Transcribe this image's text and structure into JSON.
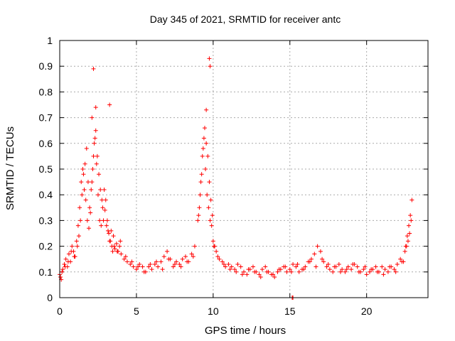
{
  "chart_data": {
    "type": "scatter",
    "title": "Day 345 of 2021, SRMTID for receiver antc",
    "xlabel": "GPS time / hours",
    "ylabel": "SRMTID / TECUs",
    "xlim": [
      0,
      24
    ],
    "ylim": [
      0,
      1
    ],
    "xticks": [
      "0",
      "5",
      "10",
      "15",
      "20"
    ],
    "yticks": [
      "0",
      "0.1",
      "0.2",
      "0.3",
      "0.4",
      "0.5",
      "0.6",
      "0.7",
      "0.8",
      "0.9",
      "1"
    ],
    "grid": true,
    "marker": "+",
    "color": "#ff0000",
    "series": [
      {
        "name": "SRMTID",
        "x": [
          0.0,
          0.1,
          0.2,
          0.3,
          0.4,
          0.5,
          0.6,
          0.7,
          0.8,
          0.9,
          1.0,
          1.1,
          1.2,
          1.3,
          1.4,
          1.5,
          1.6,
          1.7,
          1.8,
          1.9,
          2.0,
          2.1,
          2.2,
          2.3,
          2.4,
          2.5,
          2.6,
          2.7,
          2.8,
          2.9,
          3.0,
          3.1,
          3.2,
          3.3,
          3.4,
          3.5,
          3.6,
          3.7,
          3.8,
          3.9,
          4.0,
          4.2,
          4.4,
          4.6,
          4.8,
          5.0,
          5.2,
          5.4,
          5.6,
          5.8,
          6.0,
          6.2,
          6.4,
          6.6,
          6.8,
          7.0,
          7.2,
          7.4,
          7.6,
          7.8,
          8.0,
          8.2,
          8.4,
          8.6,
          8.8,
          9.0,
          9.1,
          9.2,
          9.3,
          9.4,
          9.5,
          9.6,
          9.7,
          9.8,
          9.9,
          10.0,
          10.1,
          10.2,
          10.4,
          10.6,
          10.8,
          11.0,
          11.2,
          11.4,
          11.6,
          11.8,
          12.0,
          12.2,
          12.4,
          12.6,
          12.8,
          13.0,
          13.2,
          13.4,
          13.6,
          13.8,
          14.0,
          14.2,
          14.4,
          14.6,
          14.8,
          15.0,
          15.2,
          15.4,
          15.6,
          15.8,
          16.0,
          16.2,
          16.4,
          16.6,
          16.8,
          17.0,
          17.2,
          17.4,
          17.6,
          17.8,
          18.0,
          18.2,
          18.4,
          18.6,
          18.8,
          19.0,
          19.2,
          19.4,
          19.6,
          19.8,
          20.0,
          20.2,
          20.4,
          20.6,
          20.8,
          21.0,
          21.2,
          21.4,
          21.6,
          21.8,
          22.0,
          22.2,
          22.4,
          22.5,
          22.6,
          22.7,
          22.8,
          22.9,
          0.05,
          0.15,
          0.35,
          0.55,
          0.75,
          0.95,
          1.15,
          1.25,
          1.35,
          1.45,
          1.55,
          1.65,
          1.75,
          1.85,
          1.95,
          2.05,
          2.15,
          2.25,
          2.35,
          2.45,
          2.55,
          2.65,
          2.75,
          2.85,
          2.95,
          3.05,
          3.15,
          3.25,
          3.35,
          3.45,
          3.55,
          3.75,
          3.95,
          4.3,
          4.7,
          5.1,
          5.5,
          5.9,
          6.3,
          6.7,
          7.1,
          7.5,
          7.9,
          8.3,
          8.7,
          9.05,
          9.15,
          9.25,
          9.35,
          9.45,
          9.55,
          9.65,
          9.75,
          9.85,
          9.95,
          10.05,
          10.3,
          10.7,
          11.1,
          11.5,
          11.9,
          12.3,
          12.7,
          13.1,
          13.5,
          13.9,
          14.3,
          14.7,
          15.1,
          15.5,
          15.9,
          16.3,
          16.7,
          17.1,
          17.5,
          17.9,
          18.3,
          18.7,
          19.1,
          19.5,
          19.9,
          20.3,
          20.7,
          21.1,
          21.5,
          21.9,
          22.3,
          22.55,
          22.65,
          22.75,
          22.85,
          22.95,
          15.15,
          15.2,
          2.1,
          2.35,
          9.75,
          9.8,
          3.25,
          2.2,
          9.55
        ],
        "y": [
          0.09,
          0.07,
          0.11,
          0.13,
          0.15,
          0.12,
          0.17,
          0.14,
          0.2,
          0.18,
          0.16,
          0.22,
          0.28,
          0.35,
          0.45,
          0.5,
          0.42,
          0.38,
          0.3,
          0.27,
          0.33,
          0.45,
          0.55,
          0.62,
          0.52,
          0.4,
          0.3,
          0.28,
          0.35,
          0.42,
          0.38,
          0.3,
          0.25,
          0.22,
          0.2,
          0.24,
          0.19,
          0.21,
          0.18,
          0.2,
          0.17,
          0.15,
          0.14,
          0.13,
          0.12,
          0.11,
          0.13,
          0.12,
          0.1,
          0.12,
          0.11,
          0.13,
          0.12,
          0.14,
          0.16,
          0.18,
          0.15,
          0.12,
          0.14,
          0.13,
          0.15,
          0.16,
          0.14,
          0.17,
          0.2,
          0.3,
          0.35,
          0.45,
          0.55,
          0.62,
          0.5,
          0.4,
          0.35,
          0.3,
          0.28,
          0.22,
          0.2,
          0.18,
          0.15,
          0.14,
          0.12,
          0.13,
          0.12,
          0.11,
          0.13,
          0.12,
          0.1,
          0.09,
          0.11,
          0.12,
          0.1,
          0.09,
          0.11,
          0.12,
          0.1,
          0.09,
          0.08,
          0.1,
          0.11,
          0.12,
          0.1,
          0.11,
          0.13,
          0.12,
          0.1,
          0.11,
          0.12,
          0.14,
          0.15,
          0.17,
          0.2,
          0.18,
          0.14,
          0.12,
          0.11,
          0.1,
          0.12,
          0.13,
          0.11,
          0.1,
          0.12,
          0.11,
          0.13,
          0.12,
          0.1,
          0.11,
          0.09,
          0.1,
          0.11,
          0.12,
          0.1,
          0.12,
          0.11,
          0.1,
          0.12,
          0.11,
          0.13,
          0.15,
          0.14,
          0.18,
          0.2,
          0.22,
          0.25,
          0.3,
          0.08,
          0.1,
          0.12,
          0.14,
          0.18,
          0.16,
          0.2,
          0.24,
          0.3,
          0.4,
          0.48,
          0.52,
          0.58,
          0.45,
          0.35,
          0.42,
          0.5,
          0.6,
          0.65,
          0.55,
          0.48,
          0.42,
          0.38,
          0.3,
          0.34,
          0.28,
          0.26,
          0.22,
          0.26,
          0.18,
          0.2,
          0.18,
          0.22,
          0.16,
          0.14,
          0.12,
          0.1,
          0.13,
          0.14,
          0.11,
          0.15,
          0.13,
          0.12,
          0.14,
          0.16,
          0.32,
          0.4,
          0.48,
          0.58,
          0.66,
          0.6,
          0.55,
          0.45,
          0.38,
          0.32,
          0.2,
          0.16,
          0.13,
          0.11,
          0.1,
          0.09,
          0.11,
          0.1,
          0.08,
          0.1,
          0.09,
          0.11,
          0.12,
          0.1,
          0.13,
          0.11,
          0.14,
          0.12,
          0.15,
          0.13,
          0.12,
          0.1,
          0.11,
          0.13,
          0.1,
          0.12,
          0.11,
          0.1,
          0.09,
          0.12,
          0.1,
          0.14,
          0.2,
          0.24,
          0.28,
          0.32,
          0.38,
          0.0,
          0.0,
          0.7,
          0.74,
          0.93,
          0.9,
          0.75,
          0.89,
          0.73
        ]
      }
    ]
  }
}
